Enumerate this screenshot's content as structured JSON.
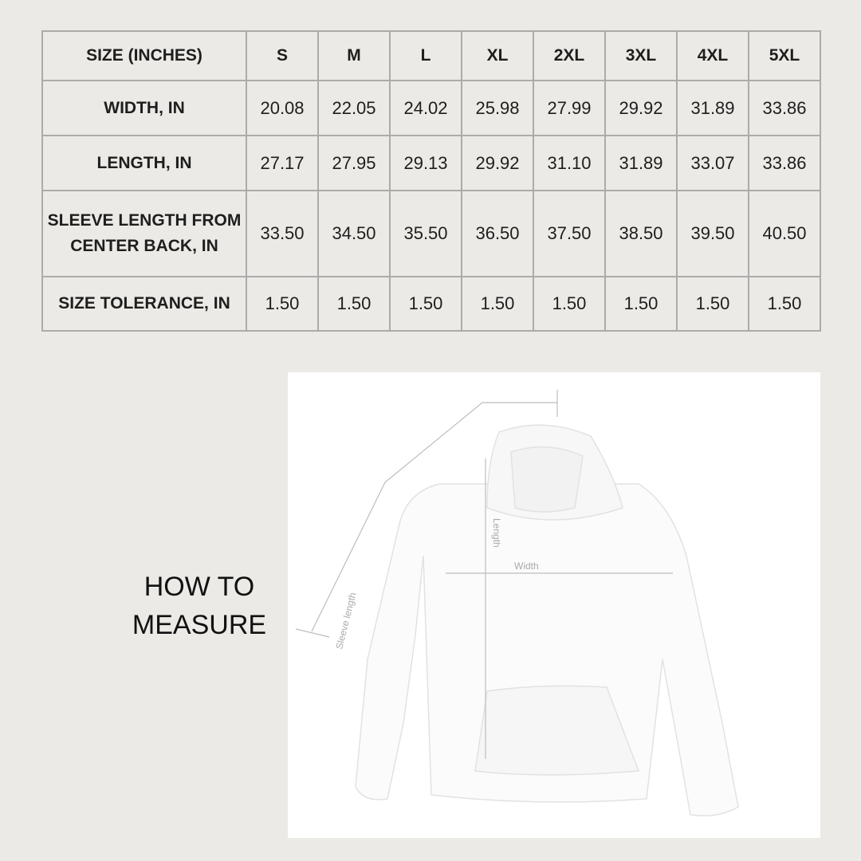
{
  "size_table": {
    "header": [
      "SIZE (INCHES)",
      "S",
      "M",
      "L",
      "XL",
      "2XL",
      "3XL",
      "4XL",
      "5XL"
    ],
    "rows": [
      {
        "label": "WIDTH, IN",
        "values": [
          "20.08",
          "22.05",
          "24.02",
          "25.98",
          "27.99",
          "29.92",
          "31.89",
          "33.86"
        ]
      },
      {
        "label": "LENGTH, IN",
        "values": [
          "27.17",
          "27.95",
          "29.13",
          "29.92",
          "31.10",
          "31.89",
          "33.07",
          "33.86"
        ]
      },
      {
        "label": "SLEEVE LENGTH FROM CENTER BACK, IN",
        "values": [
          "33.50",
          "34.50",
          "35.50",
          "36.50",
          "37.50",
          "38.50",
          "39.50",
          "40.50"
        ]
      },
      {
        "label": "SIZE TOLERANCE, IN",
        "values": [
          "1.50",
          "1.50",
          "1.50",
          "1.50",
          "1.50",
          "1.50",
          "1.50",
          "1.50"
        ]
      }
    ]
  },
  "how_to_measure": {
    "title": "HOW TO MEASURE",
    "labels": {
      "sleeve": "Sleeve length",
      "length": "Length",
      "width": "Width"
    }
  },
  "colors": {
    "background": "#ebeae6",
    "border": "#ababab",
    "text": "#1e1e1e"
  }
}
